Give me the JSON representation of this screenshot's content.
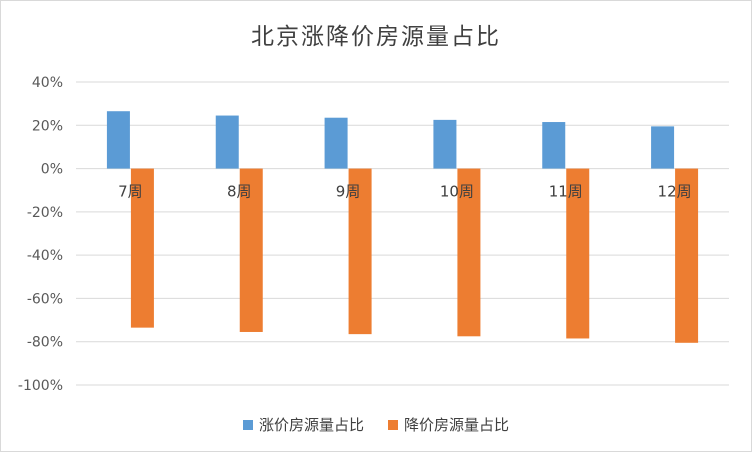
{
  "chart_data": {
    "type": "bar",
    "title": "北京涨降价房源量占比",
    "categories": [
      "7周",
      "8周",
      "9周",
      "10周",
      "11周",
      "12周"
    ],
    "series": [
      {
        "name": "涨价房源量占比",
        "color": "#5b9bd5",
        "values": [
          26.5,
          24.5,
          23.5,
          22.5,
          21.5,
          19.5
        ]
      },
      {
        "name": "降价房源量占比",
        "color": "#ed7d31",
        "values": [
          -73.5,
          -75.5,
          -76.5,
          -77.5,
          -78.5,
          -80.5
        ]
      }
    ],
    "y_ticks": [
      "40%",
      "20%",
      "0%",
      "-20%",
      "-40%",
      "-60%",
      "-80%",
      "-100%"
    ],
    "y_tick_values": [
      40,
      20,
      0,
      -20,
      -40,
      -60,
      -80,
      -100
    ],
    "ylim": [
      -100,
      40
    ],
    "grid": true,
    "legend_position": "bottom",
    "gridline_color": "#d9d9d9"
  }
}
